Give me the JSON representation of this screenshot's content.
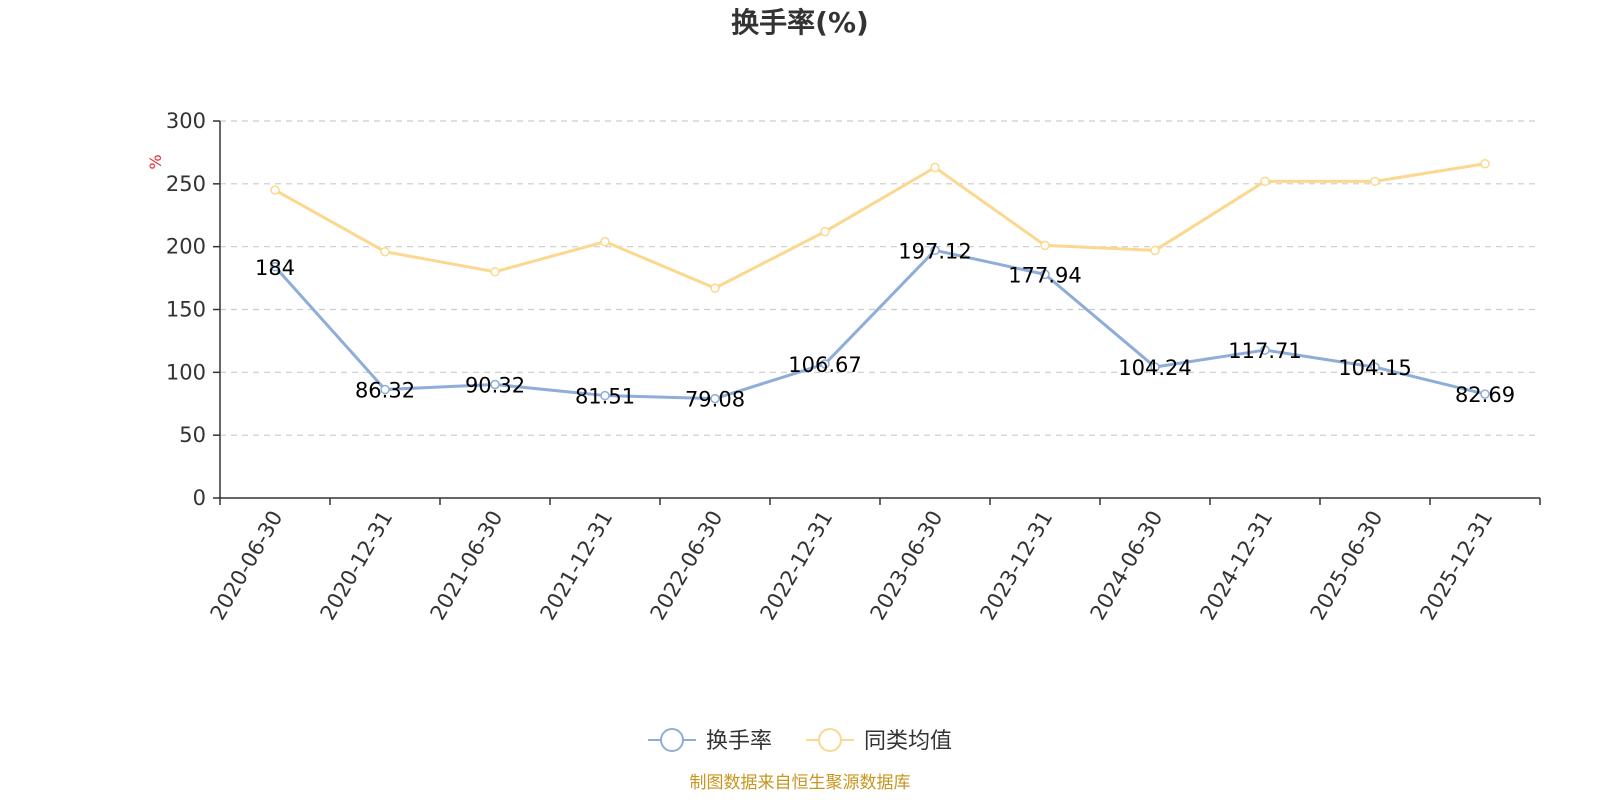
{
  "chart_data": {
    "type": "line",
    "title": "换手率(%)",
    "ylabel": "%",
    "xlabel": "",
    "ylim": [
      0,
      300
    ],
    "yticks": [
      0,
      50,
      100,
      150,
      200,
      250,
      300
    ],
    "grid": true,
    "categories": [
      "2020-06-30",
      "2020-12-31",
      "2021-06-30",
      "2021-12-31",
      "2022-06-30",
      "2022-12-31",
      "2023-06-30",
      "2023-12-31",
      "2024-06-30",
      "2024-12-31",
      "2025-06-30",
      "2025-12-31"
    ],
    "series": [
      {
        "name": "换手率",
        "color": "#8eadd8",
        "show_labels": true,
        "values": [
          184,
          86.32,
          90.32,
          81.51,
          79.08,
          106.67,
          197.12,
          177.94,
          104.24,
          117.71,
          104.15,
          82.69
        ]
      },
      {
        "name": "同类均值",
        "color": "#fbd88e",
        "show_labels": false,
        "values": [
          245,
          196,
          180,
          204,
          167,
          212,
          263,
          201,
          197,
          252,
          252,
          266
        ]
      }
    ],
    "legend_position": "bottom-center"
  },
  "unit_color": "#e8282b",
  "source": {
    "text": "制图数据来自恒生聚源数据库",
    "color": "#c8961e"
  }
}
